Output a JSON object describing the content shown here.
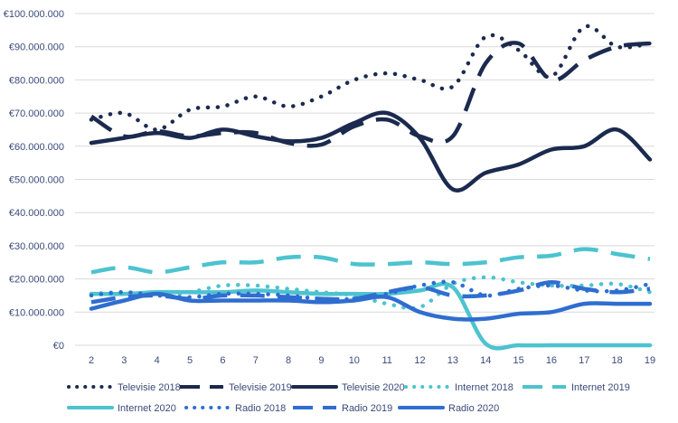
{
  "chart_data": {
    "type": "line",
    "x": [
      2,
      3,
      4,
      5,
      6,
      7,
      8,
      9,
      10,
      11,
      12,
      13,
      14,
      15,
      16,
      17,
      18,
      19
    ],
    "ylim": [
      0,
      100000000
    ],
    "y_ticks": [
      "€0",
      "€10.000.000",
      "€20.000.000",
      "€30.000.000",
      "€40.000.000",
      "€50.000.000",
      "€60.000.000",
      "€70.000.000",
      "€80.000.000",
      "€90.000.000",
      "€100.000.000"
    ],
    "y_tick_values": [
      0,
      10000000,
      20000000,
      30000000,
      40000000,
      50000000,
      60000000,
      70000000,
      80000000,
      90000000,
      100000000
    ],
    "x_ticks": [
      "2",
      "3",
      "4",
      "5",
      "6",
      "7",
      "8",
      "9",
      "10",
      "11",
      "12",
      "13",
      "14",
      "15",
      "16",
      "17",
      "18",
      "19"
    ],
    "grid": "horizontal",
    "legend_position": "bottom",
    "series": [
      {
        "name": "Televisie 2018",
        "color": "#1b2a4e",
        "style": "dotted",
        "width": 4.5,
        "values": [
          68000000,
          70000000,
          65000000,
          71000000,
          72000000,
          75000000,
          72000000,
          75000000,
          80000000,
          82000000,
          80000000,
          78000000,
          93000000,
          89000000,
          81000000,
          96000000,
          90000000,
          91000000
        ]
      },
      {
        "name": "Televisie 2019",
        "color": "#1b2a4e",
        "style": "dashed",
        "width": 4.5,
        "values": [
          69000000,
          63000000,
          64500000,
          63000000,
          64000000,
          64000000,
          61000000,
          60500000,
          66000000,
          68000000,
          63000000,
          63000000,
          85000000,
          91000000,
          80000000,
          86000000,
          90000000,
          91000000
        ]
      },
      {
        "name": "Televisie 2020",
        "color": "#1b2a4e",
        "style": "solid",
        "width": 4.5,
        "values": [
          61000000,
          62500000,
          64000000,
          62500000,
          65000000,
          63000000,
          61500000,
          62500000,
          67000000,
          70000000,
          62500000,
          47000000,
          52000000,
          54500000,
          59000000,
          60000000,
          65000000,
          56000000
        ]
      },
      {
        "name": "Internet 2018",
        "color": "#4dc3cf",
        "style": "dotted",
        "width": 4.5,
        "values": [
          15500000,
          16000000,
          15000000,
          16000000,
          18000000,
          18000000,
          17000000,
          16000000,
          15000000,
          12500000,
          11500000,
          18500000,
          20500000,
          19000000,
          18000000,
          18000000,
          18500000,
          16000000
        ]
      },
      {
        "name": "Internet 2019",
        "color": "#4dc3cf",
        "style": "dashed",
        "width": 4.5,
        "values": [
          22000000,
          23500000,
          22000000,
          23500000,
          25000000,
          25000000,
          26500000,
          26500000,
          24500000,
          24500000,
          25000000,
          24500000,
          25000000,
          26500000,
          27000000,
          29000000,
          27500000,
          26000000
        ]
      },
      {
        "name": "Internet 2020",
        "color": "#4dc3cf",
        "style": "solid",
        "width": 4.5,
        "values": [
          15500000,
          15500000,
          16000000,
          16000000,
          16000000,
          16500000,
          16000000,
          15500000,
          15500000,
          15500000,
          16500000,
          17500000,
          500000,
          0,
          0,
          0,
          0,
          0
        ]
      },
      {
        "name": "Radio 2018",
        "color": "#2f6ed0",
        "style": "dotted",
        "width": 4.5,
        "values": [
          15000000,
          16000000,
          15000000,
          14500000,
          15500000,
          15500000,
          15000000,
          14000000,
          14000000,
          15500000,
          18000000,
          19000000,
          15000000,
          17000000,
          18000000,
          16500000,
          16500000,
          18500000
        ]
      },
      {
        "name": "Radio 2019",
        "color": "#2f6ed0",
        "style": "dashed",
        "width": 4.5,
        "values": [
          13000000,
          14500000,
          15000000,
          14000000,
          15000000,
          15000000,
          14500000,
          14000000,
          14000000,
          16000000,
          17500000,
          15000000,
          15000000,
          16500000,
          19000000,
          17000000,
          16000000,
          17000000
        ]
      },
      {
        "name": "Radio 2020",
        "color": "#2f6ed0",
        "style": "solid",
        "width": 4.5,
        "values": [
          11000000,
          13500000,
          15500000,
          13500000,
          13500000,
          13500000,
          13500000,
          13000000,
          13500000,
          14500000,
          10000000,
          8000000,
          8000000,
          9500000,
          10000000,
          12500000,
          12500000,
          12500000
        ]
      }
    ]
  }
}
